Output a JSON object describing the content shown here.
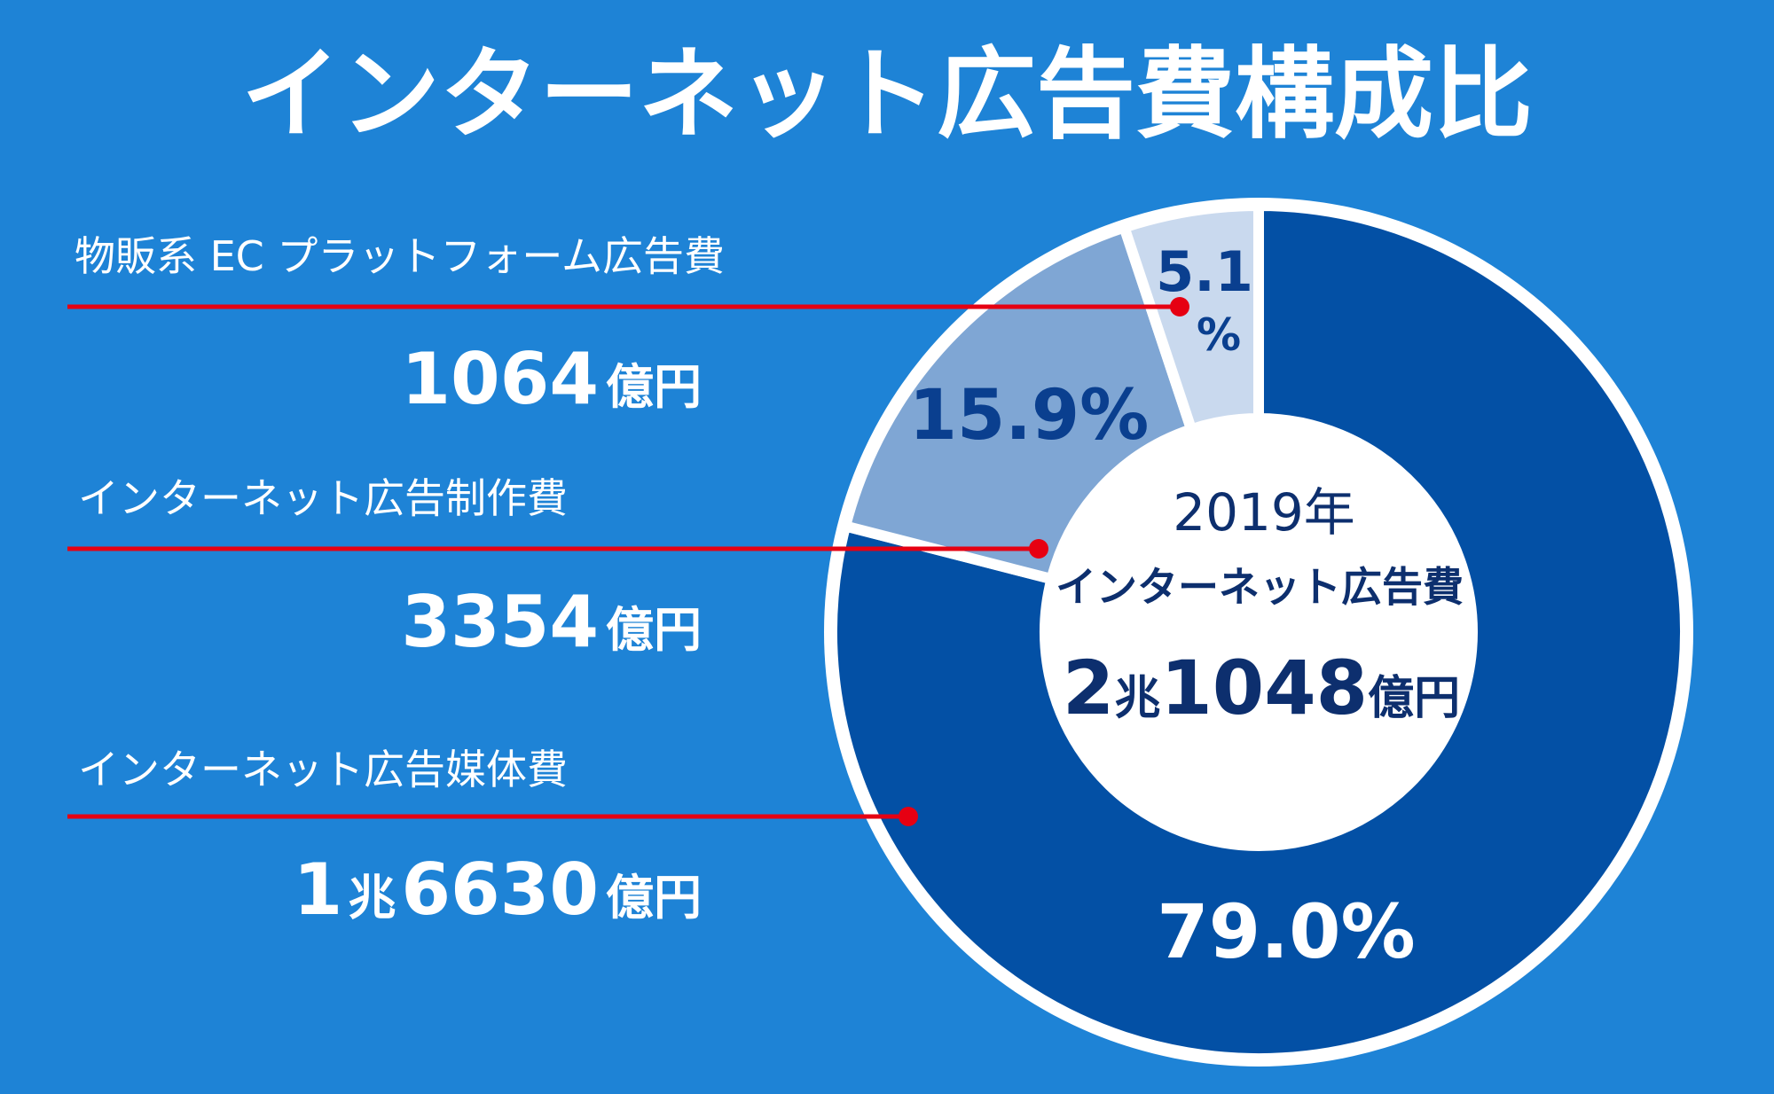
{
  "colors": {
    "background": "#1e83d6",
    "leader_line": "#e60012",
    "segment_media": "#0350a5",
    "segment_production": "#7fa6d4",
    "segment_ec": "#c9d9ee",
    "center_text": "#0d2f6e"
  },
  "chart_data": {
    "type": "pie",
    "variant": "donut",
    "title": "インターネット広告費構成比",
    "center": {
      "year": "2019年",
      "label": "インターネット広告費",
      "total_major": "2",
      "total_major_unit": "兆",
      "total_minor": "1048",
      "total_minor_unit": "億円"
    },
    "segments": [
      {
        "name": "インターネット広告媒体費",
        "percent": 79.0,
        "percent_label": "79.0%",
        "amount_prefix": "1",
        "amount_prefix_unit": "兆",
        "amount": "6630",
        "amount_unit": "億円"
      },
      {
        "name": "インターネット広告制作費",
        "percent": 15.9,
        "percent_label": "15.9%",
        "amount_prefix": "",
        "amount_prefix_unit": "",
        "amount": "3354",
        "amount_unit": "億円"
      },
      {
        "name": "物販系 EC プラットフォーム広告費",
        "percent": 5.1,
        "percent_label": "5.1",
        "percent_suffix": "%",
        "amount_prefix": "",
        "amount_prefix_unit": "",
        "amount": "1064",
        "amount_unit": "億円"
      }
    ]
  }
}
